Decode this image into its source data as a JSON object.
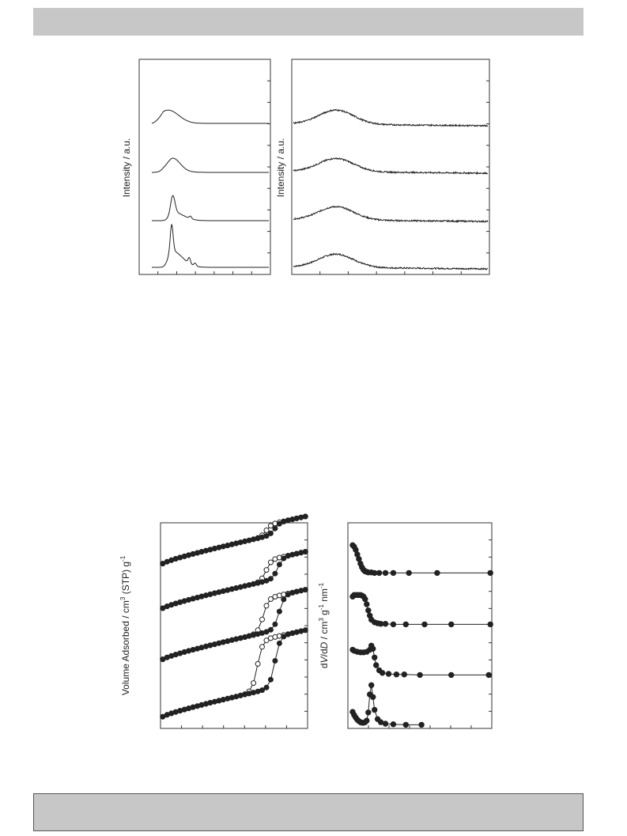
{
  "chart_data": [
    {
      "type": "line",
      "ylabel": "Intensity / a.u.",
      "xlabel": "",
      "series": [
        {
          "peak_x": 0.17,
          "peak_height": 0.55,
          "peak_width": 0.012,
          "bump_height": 0.35,
          "bump_width": 0.09,
          "small_peaks": [
            [
              0.32,
              0.12
            ],
            [
              0.37,
              0.06
            ]
          ]
        },
        {
          "peak_x": 0.18,
          "peak_height": 0.35,
          "peak_width": 0.018,
          "bump_height": 0.18,
          "bump_width": 0.09,
          "small_peaks": [
            [
              0.33,
              0.05
            ]
          ]
        },
        {
          "peak_x": 0.18,
          "peak_height": 0.25,
          "peak_width": 0.06,
          "bump_height": 0.05,
          "bump_width": 0.1,
          "small_peaks": []
        },
        {
          "peak_x": 0.14,
          "peak_height": 0.28,
          "peak_width": 0.09,
          "bump_height": 0.0,
          "bump_width": 0.1,
          "small_peaks": []
        }
      ],
      "grid": false
    },
    {
      "type": "line",
      "ylabel": "Intensity / a.u.",
      "xlabel": "",
      "series": [
        {
          "center": 0.22,
          "height": 0.28,
          "width": 0.09
        },
        {
          "center": 0.22,
          "height": 0.28,
          "width": 0.09
        },
        {
          "center": 0.22,
          "height": 0.28,
          "width": 0.09
        },
        {
          "center": 0.22,
          "height": 0.3,
          "width": 0.09
        }
      ],
      "grid": false
    },
    {
      "type": "scatter",
      "ylabel": {
        "main": "Volume Adsorbed / cm",
        "sup1": "3",
        "mid": " (STP) g",
        "sup2": "-1"
      },
      "xlabel": "",
      "series": [
        {
          "name": "",
          "base": 0.0,
          "step_x": 0.78,
          "step_height": 0.27,
          "hyst_x": 0.66
        },
        {
          "name": "",
          "base": 0.36,
          "step_x": 0.81,
          "step_height": 0.18,
          "hyst_x": 0.7
        },
        {
          "name": "",
          "base": 0.68,
          "step_x": 0.8,
          "step_height": 0.11,
          "hyst_x": 0.72
        },
        {
          "name": "",
          "base": 0.96,
          "step_x": 0.78,
          "step_height": 0.06,
          "hyst_x": 0.72
        }
      ],
      "grid": false
    },
    {
      "type": "scatter",
      "ylabel": {
        "italic1": "V",
        "italic2": "D",
        "sup1": "3",
        "sup2": "-1",
        "sup3": "-1"
      },
      "xlabel": "",
      "series": [
        {
          "name": "",
          "x": [
            0.02,
            0.03,
            0.04,
            0.05,
            0.06,
            0.07,
            0.08,
            0.09,
            0.1,
            0.11,
            0.12,
            0.13,
            0.14,
            0.15,
            0.16,
            0.18,
            0.2,
            0.23,
            0.28,
            0.36,
            0.46
          ],
          "y": [
            0.26,
            0.2,
            0.15,
            0.11,
            0.08,
            0.06,
            0.05,
            0.05,
            0.06,
            0.09,
            0.25,
            0.6,
            0.78,
            0.55,
            0.3,
            0.12,
            0.06,
            0.03,
            0.02,
            0.01,
            0.01
          ]
        },
        {
          "name": "",
          "x": [
            0.02,
            0.03,
            0.05,
            0.07,
            0.09,
            0.11,
            0.13,
            0.14,
            0.15,
            0.16,
            0.17,
            0.19,
            0.21,
            0.25,
            0.3,
            0.35,
            0.45,
            0.65,
            0.89
          ],
          "y": [
            0.5,
            0.48,
            0.46,
            0.45,
            0.45,
            0.46,
            0.5,
            0.58,
            0.52,
            0.35,
            0.2,
            0.1,
            0.05,
            0.03,
            0.02,
            0.02,
            0.01,
            0.01,
            0.01
          ]
        },
        {
          "name": "",
          "x": [
            0.02,
            0.03,
            0.04,
            0.05,
            0.06,
            0.07,
            0.08,
            0.09,
            0.1,
            0.11,
            0.12,
            0.13,
            0.14,
            0.16,
            0.18,
            0.2,
            0.23,
            0.28,
            0.36,
            0.48,
            0.65,
            0.9
          ],
          "y": [
            0.55,
            0.58,
            0.58,
            0.58,
            0.58,
            0.58,
            0.57,
            0.55,
            0.5,
            0.4,
            0.28,
            0.18,
            0.1,
            0.05,
            0.03,
            0.02,
            0.02,
            0.01,
            0.01,
            0.01,
            0.01,
            0.01
          ]
        },
        {
          "name": "",
          "x": [
            0.02,
            0.03,
            0.04,
            0.05,
            0.06,
            0.07,
            0.08,
            0.09,
            0.1,
            0.11,
            0.12,
            0.14,
            0.16,
            0.19,
            0.23,
            0.28,
            0.38,
            0.56,
            0.9
          ],
          "y": [
            0.55,
            0.52,
            0.46,
            0.37,
            0.28,
            0.19,
            0.12,
            0.07,
            0.04,
            0.03,
            0.02,
            0.02,
            0.01,
            0.01,
            0.01,
            0.01,
            0.01,
            0.01,
            0.01
          ]
        }
      ],
      "grid": false
    }
  ]
}
